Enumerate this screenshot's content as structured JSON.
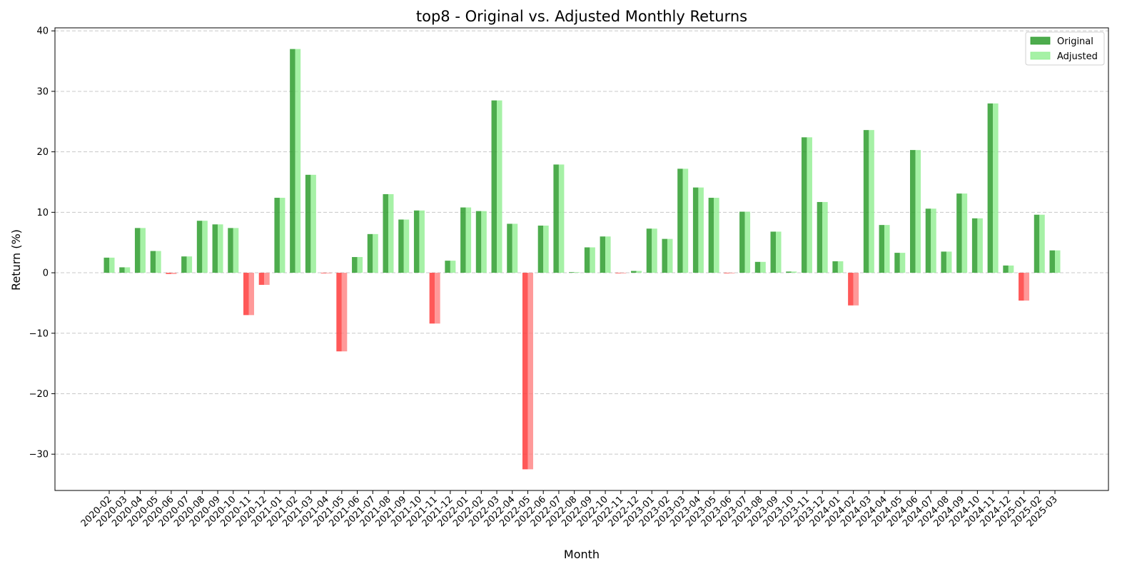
{
  "chart_data": {
    "type": "bar",
    "title": "top8 - Original vs. Adjusted Monthly Returns",
    "xlabel": "Month",
    "ylabel": "Return (%)",
    "ylim": [
      -36,
      40.5
    ],
    "yticks": [
      40,
      30,
      20,
      10,
      0,
      -10,
      -20,
      -30
    ],
    "ytick_labels": [
      "40",
      "30",
      "20",
      "10",
      "0",
      "−10",
      "−20",
      "−30"
    ],
    "grid": "horizontal dashed",
    "legend_position": "top-right",
    "categories": [
      "2020-02",
      "2020-03",
      "2020-04",
      "2020-05",
      "2020-06",
      "2020-07",
      "2020-08",
      "2020-09",
      "2020-10",
      "2020-11",
      "2020-12",
      "2021-01",
      "2021-02",
      "2021-03",
      "2021-04",
      "2021-05",
      "2021-06",
      "2021-07",
      "2021-08",
      "2021-09",
      "2021-10",
      "2021-11",
      "2021-12",
      "2022-01",
      "2022-02",
      "2022-03",
      "2022-04",
      "2022-05",
      "2022-06",
      "2022-07",
      "2022-08",
      "2022-09",
      "2022-10",
      "2022-11",
      "2022-12",
      "2023-01",
      "2023-02",
      "2023-03",
      "2023-04",
      "2023-05",
      "2023-06",
      "2023-07",
      "2023-08",
      "2023-09",
      "2023-10",
      "2023-11",
      "2023-12",
      "2024-01",
      "2024-02",
      "2024-03",
      "2024-04",
      "2024-05",
      "2024-06",
      "2024-07",
      "2024-08",
      "2024-09",
      "2024-10",
      "2024-11",
      "2024-12",
      "2025-01",
      "2025-02",
      "2025-03"
    ],
    "series": [
      {
        "name": "Original",
        "color_pos": "#2e9e2e",
        "color_neg": "#ff3b3b",
        "values": [
          2.5,
          0.9,
          7.4,
          3.6,
          -0.2,
          2.7,
          8.6,
          8.0,
          7.4,
          -7.0,
          -2.0,
          12.4,
          37.0,
          16.2,
          -0.1,
          -13.0,
          2.6,
          6.4,
          13.0,
          8.8,
          10.3,
          -8.4,
          2.0,
          10.8,
          10.2,
          28.5,
          8.1,
          -32.5,
          7.8,
          17.9,
          0.1,
          4.2,
          6.0,
          -0.1,
          0.3,
          7.3,
          5.6,
          17.2,
          14.1,
          12.4,
          -0.1,
          10.1,
          1.8,
          6.8,
          0.2,
          22.4,
          11.7,
          1.9,
          -5.4,
          23.6,
          7.9,
          3.3,
          20.3,
          10.6,
          3.5,
          13.1,
          9.0,
          28.0,
          1.2,
          -4.6,
          9.6,
          3.7
        ]
      },
      {
        "name": "Adjusted",
        "color_pos": "#90ee90",
        "color_neg": "#ff8080",
        "values": [
          2.5,
          0.9,
          7.4,
          3.6,
          -0.2,
          2.7,
          8.6,
          8.0,
          7.4,
          -7.0,
          -2.0,
          12.4,
          37.0,
          16.2,
          -0.1,
          -13.0,
          2.6,
          6.4,
          13.0,
          8.8,
          10.3,
          -8.4,
          2.0,
          10.8,
          10.2,
          28.5,
          8.1,
          -32.5,
          7.8,
          17.9,
          0.1,
          4.2,
          6.0,
          -0.1,
          0.3,
          7.3,
          5.6,
          17.2,
          14.1,
          12.4,
          -0.1,
          10.1,
          1.8,
          6.8,
          0.2,
          22.4,
          11.7,
          1.9,
          -5.4,
          23.6,
          7.9,
          3.3,
          20.3,
          10.6,
          3.5,
          13.1,
          9.0,
          28.0,
          1.2,
          -4.6,
          9.6,
          3.7
        ]
      }
    ]
  }
}
